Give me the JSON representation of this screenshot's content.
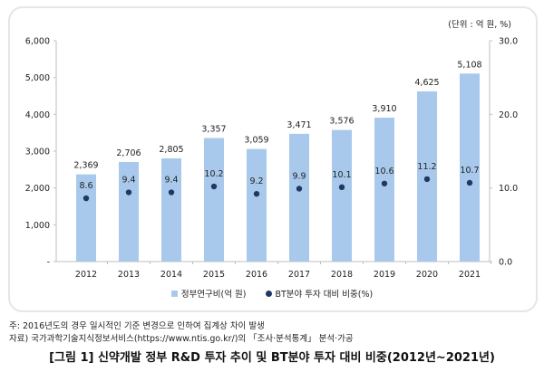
{
  "chart_data": {
    "type": "bar+scatter",
    "unit_label": "(단위 : 억 원, %)",
    "categories": [
      "2012",
      "2013",
      "2014",
      "2015",
      "2016",
      "2017",
      "2018",
      "2019",
      "2020",
      "2021"
    ],
    "series": [
      {
        "name": "정부연구비(억 원)",
        "type": "bar",
        "axis": "left",
        "color": "#a9c9ec",
        "values": [
          2369,
          2706,
          2805,
          3357,
          3059,
          3471,
          3576,
          3910,
          4625,
          5108
        ],
        "labels": [
          "2,369",
          "2,706",
          "2,805",
          "3,357",
          "3,059",
          "3,471",
          "3,576",
          "3,910",
          "4,625",
          "5,108"
        ]
      },
      {
        "name": "BT분야 투자 대비 비중(%)",
        "type": "scatter",
        "axis": "right",
        "color": "#1f3864",
        "values": [
          8.6,
          9.4,
          9.4,
          10.2,
          9.2,
          9.9,
          10.1,
          10.6,
          11.2,
          10.7
        ],
        "labels": [
          "8.6",
          "9.4",
          "9.4",
          "10.2",
          "9.2",
          "9.9",
          "10.1",
          "10.6",
          "11.2",
          "10.7"
        ]
      }
    ],
    "y_left": {
      "range": [
        0,
        6000
      ],
      "ticks": [
        "-",
        "1,000",
        "2,000",
        "3,000",
        "4,000",
        "5,000",
        "6,000"
      ]
    },
    "y_right": {
      "range": [
        0,
        30
      ],
      "ticks": [
        "0.0",
        "10.0",
        "20.0",
        "30.0"
      ]
    },
    "grid": false,
    "legend": "bottom"
  },
  "notes": {
    "note": "주: 2016년도의 경우 일시적인 기준 변경으로 인하여 집계상 차이 발생",
    "source": "자료) 국가과학기술지식정보서비스(https://www.ntis.go.kr/)의 「조사·분석통계」 분석·가공"
  },
  "figure_title": "[그림 1] 신약개발 정부 R&D 투자 추이 및 BT분야 투자 대비 비중(2012년~2021년)"
}
